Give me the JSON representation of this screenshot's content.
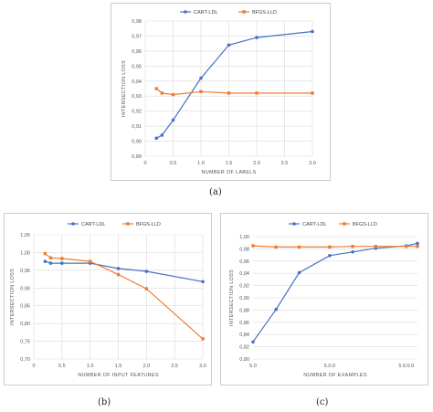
{
  "colors": {
    "series_a": "#4472C4",
    "series_b": "#ED7D31",
    "grid": "#d9d9d9",
    "frame": "#bfbfbf"
  },
  "panel_labels": [
    "(a)",
    "(b)",
    "(c)"
  ],
  "chart_data": [
    {
      "id": "a",
      "type": "line",
      "xlabel": "NUMBER OF LABELS",
      "ylabel": "INTERSECTION LOSS",
      "xlim": [
        0,
        3.0
      ],
      "ylim": [
        0.89,
        0.98
      ],
      "xticks": [
        "0",
        "0.5",
        "1.0",
        "1.5",
        "2.0",
        "2.5",
        "3.0"
      ],
      "yticks": [
        "0,89",
        "0,90",
        "0,91",
        "0,92",
        "0,93",
        "0,94",
        "0,95",
        "0,96",
        "0,97",
        "0,98"
      ],
      "legend_position": "top-center",
      "grid": true,
      "series": [
        {
          "name": "CART-LDL",
          "color": "#4472C4",
          "points": [
            [
              0.2,
              0.902
            ],
            [
              0.3,
              0.904
            ],
            [
              0.5,
              0.914
            ],
            [
              1.0,
              0.942
            ],
            [
              1.5,
              0.964
            ],
            [
              2.0,
              0.969
            ],
            [
              3.0,
              0.973
            ]
          ]
        },
        {
          "name": "BFGS-LLD",
          "color": "#ED7D31",
          "points": [
            [
              0.2,
              0.935
            ],
            [
              0.3,
              0.932
            ],
            [
              0.5,
              0.931
            ],
            [
              1.0,
              0.933
            ],
            [
              1.5,
              0.932
            ],
            [
              2.0,
              0.932
            ],
            [
              3.0,
              0.932
            ]
          ]
        }
      ]
    },
    {
      "id": "b",
      "type": "line",
      "xlabel": "NUMBER OF INPUT FEATURES",
      "ylabel": "INTERSECTION LOSS",
      "xlim": [
        0,
        3.0
      ],
      "ylim": [
        0.7,
        1.05
      ],
      "xticks": [
        "0",
        "0.5",
        "1.0",
        "1.5",
        "2.0",
        "2.5",
        "3.0"
      ],
      "yticks": [
        "0,70",
        "0,75",
        "0,80",
        "0,85",
        "0,90",
        "0,95",
        "1,00",
        "1,05"
      ],
      "legend_position": "top-center",
      "grid": true,
      "series": [
        {
          "name": "CART-LDL",
          "color": "#4472C4",
          "points": [
            [
              0.2,
              0.975
            ],
            [
              0.3,
              0.97
            ],
            [
              0.5,
              0.97
            ],
            [
              1.0,
              0.97
            ],
            [
              1.5,
              0.955
            ],
            [
              2.0,
              0.947
            ],
            [
              3.0,
              0.918
            ]
          ]
        },
        {
          "name": "BFGS-LLD",
          "color": "#ED7D31",
          "points": [
            [
              0.2,
              0.997
            ],
            [
              0.3,
              0.985
            ],
            [
              0.5,
              0.983
            ],
            [
              1.0,
              0.975
            ],
            [
              1.5,
              0.938
            ],
            [
              2.0,
              0.898
            ],
            [
              3.0,
              0.757
            ]
          ]
        }
      ]
    },
    {
      "id": "c",
      "type": "line",
      "xscale": "log",
      "xlabel": "NUMBER OF EXAMPLES",
      "ylabel": "INTERSECTION LOSS",
      "xlim": [
        50,
        7000
      ],
      "ylim": [
        0.8,
        1.0
      ],
      "xticks": [
        {
          "value": 50,
          "label": "5.0"
        },
        {
          "value": 500,
          "label": "5.0.0"
        },
        {
          "value": 5000,
          "label": "5.0.0.0"
        }
      ],
      "yticks": [
        "0,80",
        "0,82",
        "0,84",
        "0,86",
        "0,88",
        "0,90",
        "0,92",
        "0,94",
        "0,96",
        "0,98",
        "1,00"
      ],
      "legend_position": "top-center",
      "grid": true,
      "series": [
        {
          "name": "CART-LDL",
          "color": "#4472C4",
          "points": [
            [
              50,
              0.828
            ],
            [
              100,
              0.881
            ],
            [
              200,
              0.941
            ],
            [
              500,
              0.969
            ],
            [
              1000,
              0.975
            ],
            [
              2000,
              0.981
            ],
            [
              5000,
              0.985
            ],
            [
              7000,
              0.989
            ]
          ]
        },
        {
          "name": "BFGS-LLD",
          "color": "#ED7D31",
          "points": [
            [
              50,
              0.985
            ],
            [
              100,
              0.983
            ],
            [
              200,
              0.983
            ],
            [
              500,
              0.983
            ],
            [
              1000,
              0.984
            ],
            [
              2000,
              0.984
            ],
            [
              5000,
              0.984
            ],
            [
              7000,
              0.984
            ]
          ]
        }
      ]
    }
  ]
}
